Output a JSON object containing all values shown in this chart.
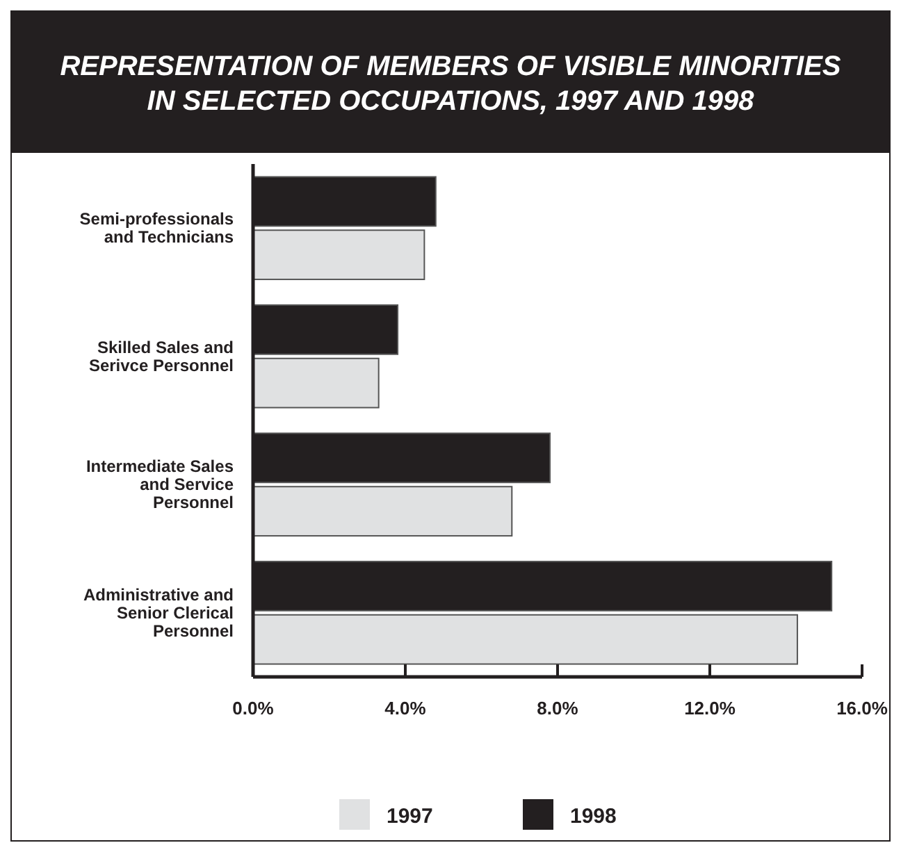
{
  "chart_data": {
    "type": "bar",
    "orientation": "horizontal",
    "title": "REPRESENTATION OF MEMBERS OF VISIBLE MINORITIES IN SELECTED OCCUPATIONS, 1997 AND 1998",
    "categories": [
      "Semi-professionals and Technicians",
      "Skilled Sales and Serivce Personnel",
      "Intermediate Sales and Service Personnel",
      "Administrative and Senior Clerical Personnel"
    ],
    "series": [
      {
        "name": "1997",
        "color": "#e0e1e2",
        "values": [
          4.5,
          3.3,
          6.8,
          14.3
        ]
      },
      {
        "name": "1998",
        "color": "#231f20",
        "values": [
          4.8,
          3.8,
          7.8,
          15.2
        ]
      }
    ],
    "xlim": [
      0,
      16
    ],
    "xticks": [
      {
        "value": 0,
        "label": "0.0%"
      },
      {
        "value": 4,
        "label": "4.0%"
      },
      {
        "value": 8,
        "label": "8.0%"
      },
      {
        "value": 12,
        "label": "12.0%"
      },
      {
        "value": 16,
        "label": "16.0%"
      }
    ],
    "grid": false,
    "legend": "bottom"
  }
}
